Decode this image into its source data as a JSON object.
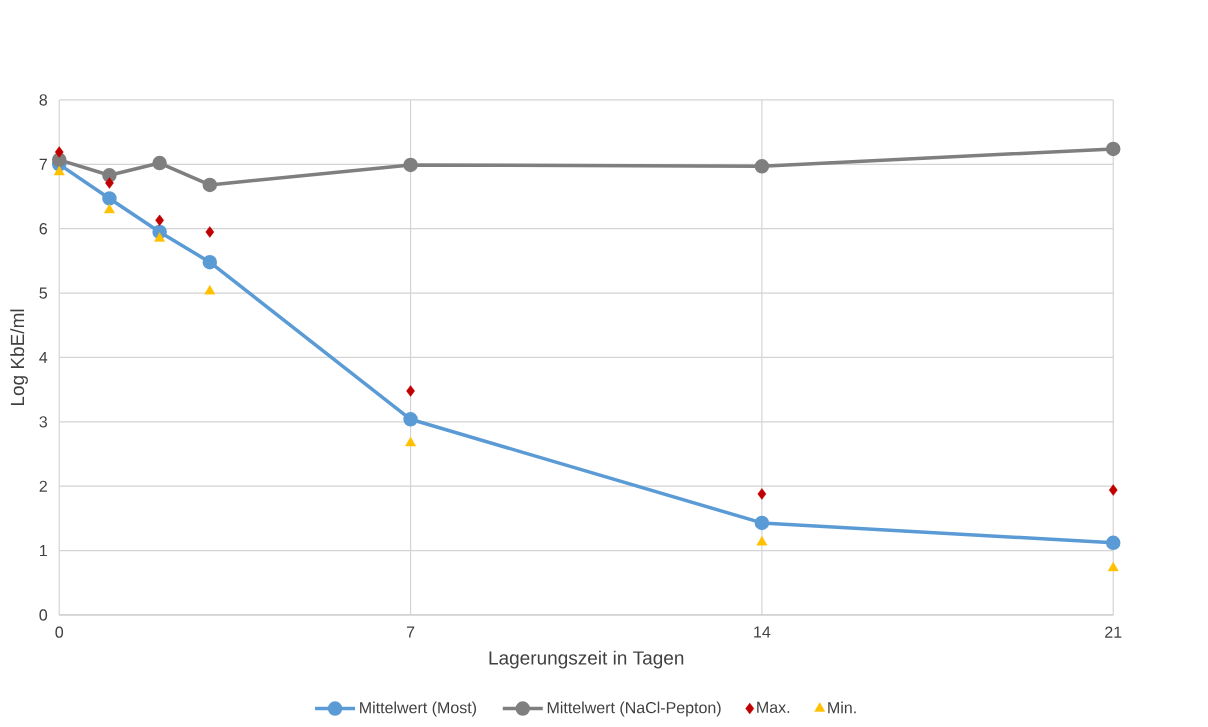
{
  "chart_data": {
    "type": "line",
    "xlabel": "Lagerungszeit in Tagen",
    "ylabel": "Log KbE/ml",
    "x": [
      0,
      1,
      2,
      3,
      7,
      14,
      21
    ],
    "xlim": [
      0,
      21
    ],
    "xticks": [
      0,
      7,
      14,
      21
    ],
    "ylim": [
      0,
      8
    ],
    "yticks": [
      0,
      1,
      2,
      3,
      4,
      5,
      6,
      7,
      8
    ],
    "grid": true,
    "legend": "bottom",
    "marker": "circle",
    "series": [
      {
        "name": "Mittelwert (Most)",
        "color": "#5b9bd5",
        "values": [
          7.0,
          6.47,
          5.95,
          5.48,
          3.04,
          1.43,
          1.12
        ]
      },
      {
        "name": "Mittelwert (NaCl-Pepton)",
        "color": "#7f7f7f",
        "values": [
          7.07,
          6.83,
          7.02,
          6.68,
          6.99,
          6.97,
          7.24
        ]
      },
      {
        "name": "Max.",
        "type": "scatter",
        "marker": "diamond",
        "color": "#c00000",
        "values": [
          7.19,
          6.71,
          6.13,
          5.95,
          3.48,
          1.88,
          1.94
        ]
      },
      {
        "name": "Min.",
        "type": "scatter",
        "marker": "triangle",
        "color": "#ffc000",
        "values": [
          6.88,
          6.29,
          5.85,
          5.03,
          2.67,
          1.13,
          0.73
        ]
      }
    ]
  }
}
